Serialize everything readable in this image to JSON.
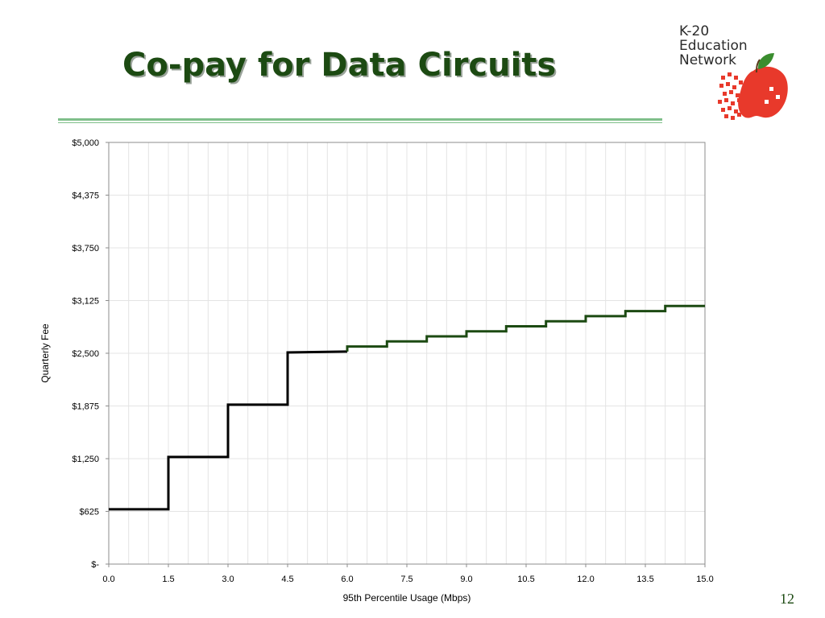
{
  "slide": {
    "title": "Co-pay for Data Circuits",
    "page_number": "12"
  },
  "logo": {
    "line1": "K-20",
    "line2": "Education",
    "line3": "Network",
    "icon": "apple-icon",
    "apple_color": "#e8392b",
    "leaf_color": "#3a8d2e"
  },
  "colors": {
    "title": "#1c4a12",
    "line_dark": "#000000",
    "line_green": "#1c4a12",
    "grid": "#e4e4e4"
  },
  "chart_data": {
    "type": "line",
    "step": true,
    "xlabel": "95th Percentile Usage (Mbps)",
    "ylabel": "Quarterly Fee",
    "xlim": [
      0,
      15
    ],
    "ylim": [
      0,
      5000
    ],
    "x_ticks": [
      0,
      1.5,
      3,
      4.5,
      6,
      7.5,
      9,
      10.5,
      12,
      13.5,
      15
    ],
    "x_tick_labels": [
      "0.0",
      "1.5",
      "3.0",
      "4.5",
      "6.0",
      "7.5",
      "9.0",
      "10.5",
      "12.0",
      "13.5",
      "15.0"
    ],
    "y_ticks": [
      0,
      625,
      1250,
      1875,
      2500,
      3125,
      3750,
      4375,
      5000
    ],
    "y_tick_labels": [
      "$-",
      "$625",
      "$1,250",
      "$1,875",
      "$2,500",
      "$3,125",
      "$3,750",
      "$4,375",
      "$5,000"
    ],
    "grid": true,
    "series": [
      {
        "color": "#000000",
        "points": [
          [
            0,
            650
          ],
          [
            1.5,
            650
          ],
          [
            1.5,
            1270
          ],
          [
            3,
            1270
          ],
          [
            3,
            1890
          ],
          [
            4.5,
            1890
          ],
          [
            4.5,
            2510
          ],
          [
            6,
            2520
          ]
        ]
      },
      {
        "color": "#1c4a12",
        "points": [
          [
            6,
            2520
          ],
          [
            6,
            2580
          ],
          [
            7,
            2580
          ],
          [
            7,
            2640
          ],
          [
            8,
            2640
          ],
          [
            8,
            2700
          ],
          [
            9,
            2700
          ],
          [
            9,
            2760
          ],
          [
            10,
            2760
          ],
          [
            10,
            2820
          ],
          [
            11,
            2820
          ],
          [
            11,
            2880
          ],
          [
            12,
            2880
          ],
          [
            12,
            2940
          ],
          [
            13,
            2940
          ],
          [
            13,
            3000
          ],
          [
            14,
            3000
          ],
          [
            14,
            3060
          ],
          [
            15,
            3060
          ]
        ]
      }
    ]
  }
}
